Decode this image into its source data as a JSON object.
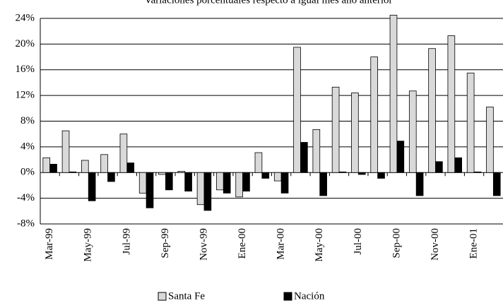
{
  "chart_data": {
    "type": "bar",
    "title": "Variaciones porcentuales respecto a igual mes año anterior",
    "categories": [
      "Mar-99",
      null,
      "May-99",
      null,
      "Jul-99",
      null,
      "Sep-99",
      null,
      "Nov-99",
      null,
      "Ene-00",
      null,
      "Mar-00",
      null,
      "May-00",
      null,
      "Jul-00",
      null,
      "Sep-00",
      null,
      "Nov-00",
      null,
      "Ene-01",
      null
    ],
    "series": [
      {
        "name": "Santa Fe",
        "color": "#d9d9d9",
        "values": [
          2.3,
          6.5,
          1.9,
          2.8,
          6.0,
          -3.2,
          -0.3,
          0.2,
          -5.0,
          -2.7,
          -3.8,
          3.1,
          -1.3,
          19.5,
          6.7,
          13.3,
          12.4,
          18.0,
          24.5,
          12.7,
          19.3,
          21.3,
          15.5,
          10.2
        ]
      },
      {
        "name": "Nación",
        "color": "#000000",
        "values": [
          1.3,
          0.1,
          -4.4,
          -1.4,
          1.5,
          -5.5,
          -2.7,
          -2.9,
          -5.9,
          -3.2,
          -2.9,
          -0.9,
          -3.2,
          4.7,
          -3.6,
          0.1,
          -0.3,
          -0.9,
          4.9,
          -3.6,
          1.7,
          2.3,
          0.1,
          -3.6
        ]
      }
    ],
    "ylim": [
      -8,
      24
    ],
    "yticks": [
      {
        "value": -8,
        "label": "-8%"
      },
      {
        "value": -4,
        "label": "-4%"
      },
      {
        "value": 0,
        "label": "0%"
      },
      {
        "value": 4,
        "label": "4%"
      },
      {
        "value": 8,
        "label": "8%"
      },
      {
        "value": 12,
        "label": "12%"
      },
      {
        "value": 16,
        "label": "16%"
      },
      {
        "value": 20,
        "label": "20%"
      },
      {
        "value": 24,
        "label": "24%"
      }
    ],
    "grid": true,
    "legend": "bottom"
  }
}
